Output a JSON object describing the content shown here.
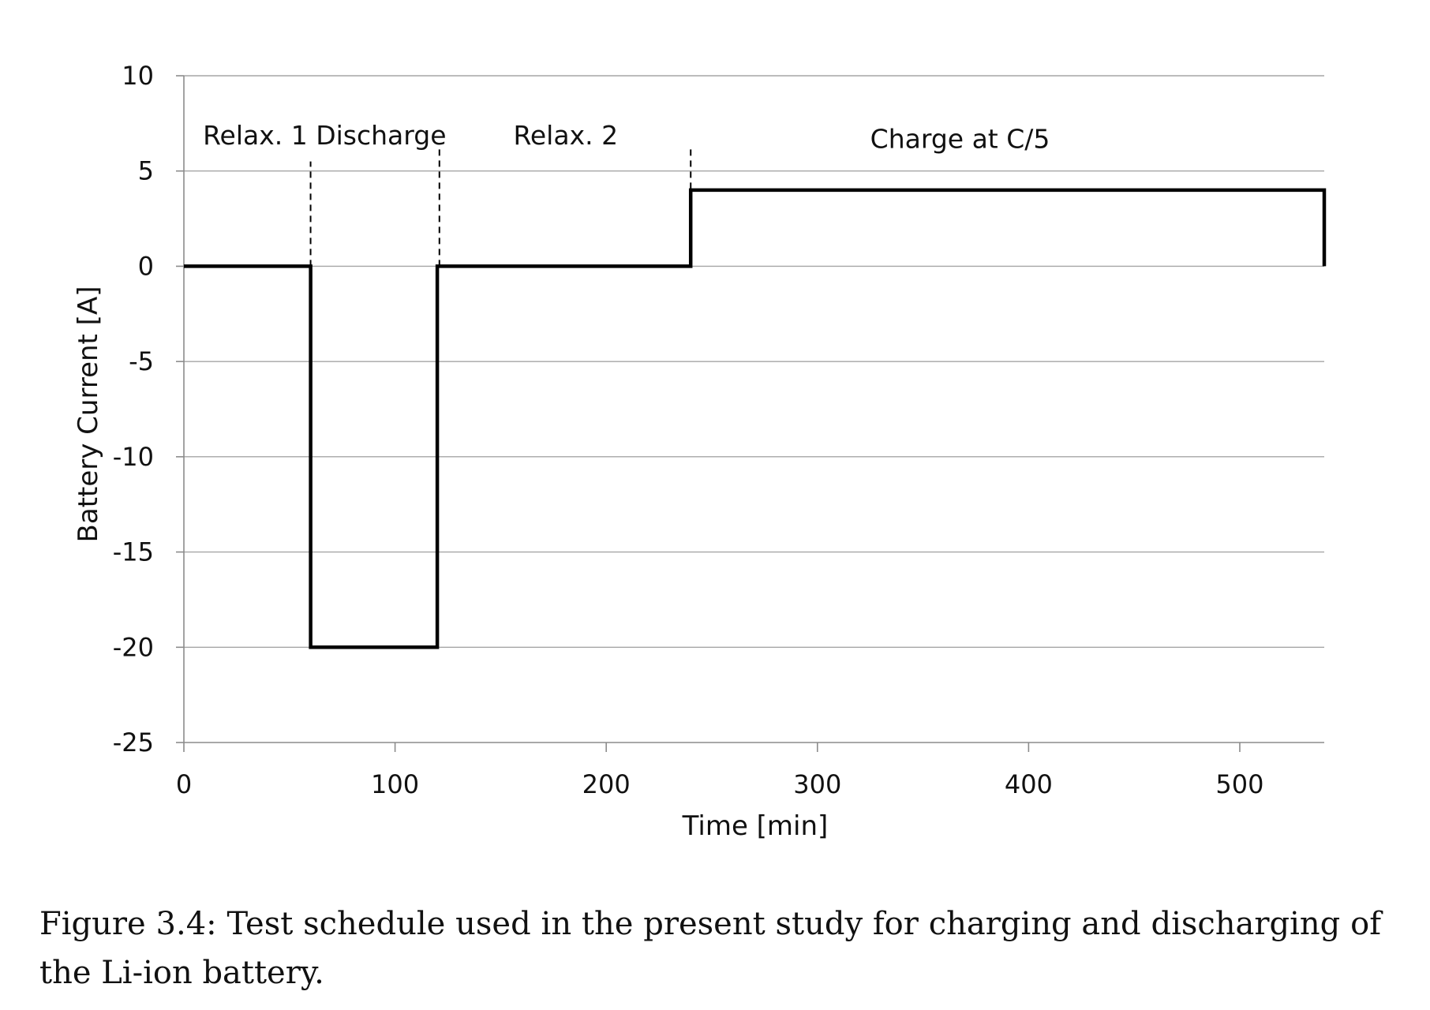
{
  "chart_data": {
    "type": "line",
    "title": "",
    "xlabel": "Time [min]",
    "ylabel": "Battery Current [A]",
    "xlim": [
      0,
      540
    ],
    "ylim": [
      -25,
      10
    ],
    "xticks": [
      0,
      100,
      200,
      300,
      400,
      500
    ],
    "yticks": [
      10,
      5,
      0,
      -5,
      -10,
      -15,
      -20,
      -25
    ],
    "grid": "horizontal",
    "legend": "none",
    "line_color": "#000000",
    "series": [
      {
        "name": "",
        "step": true,
        "points": [
          [
            0,
            0
          ],
          [
            60,
            0
          ],
          [
            60,
            -20
          ],
          [
            120,
            -20
          ],
          [
            120,
            0
          ],
          [
            240,
            0
          ],
          [
            240,
            4
          ],
          [
            540,
            4
          ],
          [
            540,
            0
          ]
        ]
      }
    ],
    "phase_boundaries": [
      {
        "x": 60,
        "y_top": 5.5
      },
      {
        "x": 121,
        "y_top": 6.2
      },
      {
        "x": 240,
        "y_top": 6.2
      }
    ],
    "annotations": [
      {
        "text": "Relax. 1 Discharge",
        "x": 9,
        "y": 6.4
      },
      {
        "text": "Relax. 2",
        "x": 156,
        "y": 6.4
      },
      {
        "text": "Charge at C/5",
        "x": 325,
        "y": 6.2
      }
    ]
  },
  "caption": "Figure 3.4: Test schedule used in the present study for charging and discharging of the Li-ion battery."
}
